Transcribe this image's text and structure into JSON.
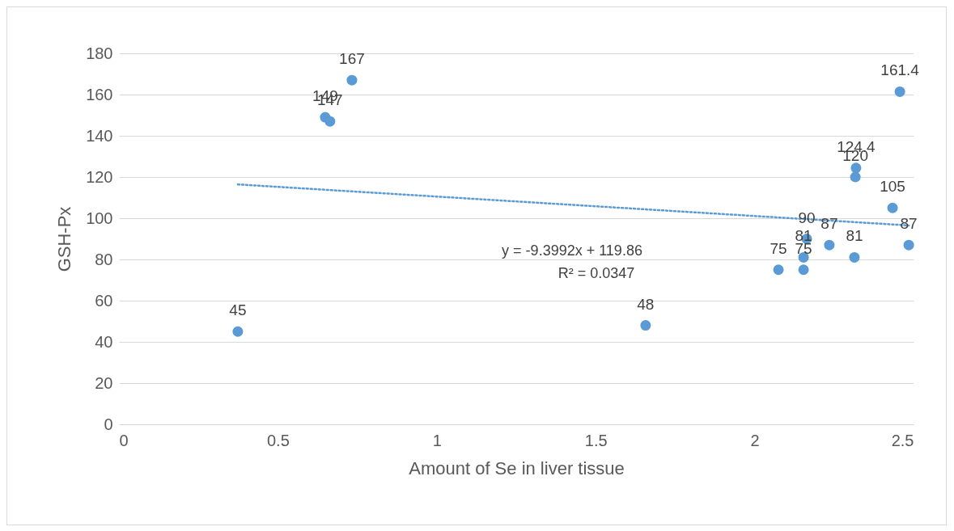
{
  "chart_data": {
    "type": "scatter",
    "xlabel": "Amount of Se in liver tissue",
    "ylabel": "GSH-Px",
    "xlim": [
      0,
      2.5
    ],
    "xticks": [
      0,
      0.5,
      1,
      1.5,
      2,
      2.5
    ],
    "ylim": [
      0,
      180
    ],
    "yticks": [
      0,
      20,
      40,
      60,
      80,
      100,
      120,
      140,
      160,
      180
    ],
    "grid": "y",
    "series": [
      {
        "type": "line",
        "color": "#5b9bd5",
        "line_style": "dotted",
        "marker": "none",
        "x": [
          0.374,
          2.485
        ],
        "values": [
          116.4,
          96.5
        ]
      },
      {
        "color": "#5b9bd5",
        "marker": "circle",
        "x": [
          0.374,
          0.649,
          0.664,
          0.733,
          1.657,
          2.075,
          2.154,
          2.154,
          2.164,
          2.235,
          2.314,
          2.317,
          2.319,
          2.434,
          2.457,
          2.485
        ],
        "values": [
          45,
          149,
          147,
          167,
          48,
          75,
          81,
          75,
          90,
          87,
          81,
          120,
          124.4,
          105,
          161.4,
          87
        ],
        "value_labels": [
          "45",
          "149",
          "147",
          "167",
          "48",
          "75",
          "81",
          "75",
          "90",
          "87",
          "81",
          "120",
          "124.4",
          "105",
          "161.4",
          "87"
        ]
      }
    ],
    "annotations": [
      "y = -9.3992x + 119.86",
      "R² = 0.0347"
    ]
  }
}
